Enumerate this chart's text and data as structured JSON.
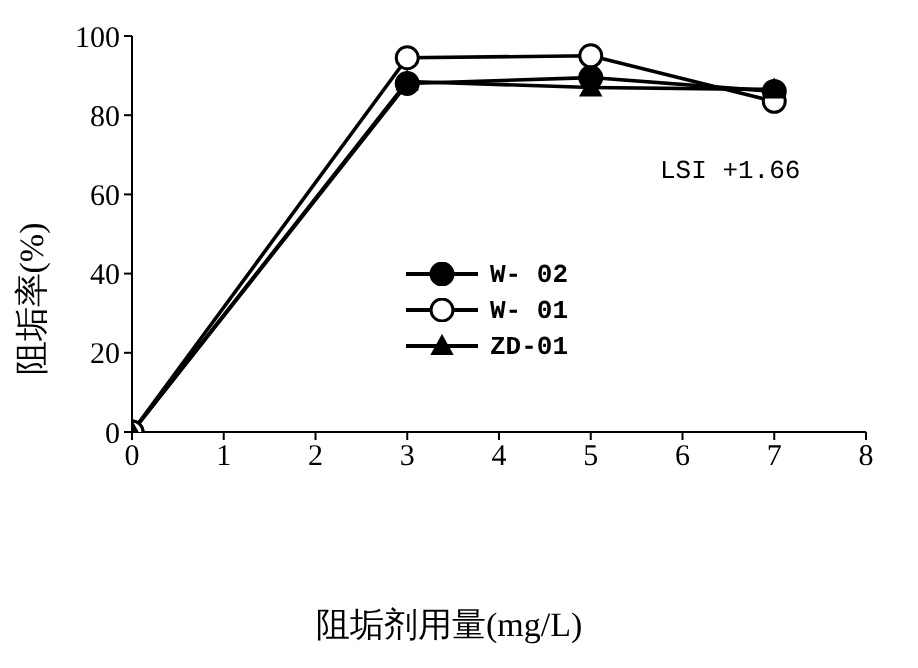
{
  "chart_data": {
    "type": "line",
    "xlabel": "阻垢剂用量(mg/L)",
    "ylabel": "阻垢率(%)",
    "x": [
      0,
      3,
      5,
      7
    ],
    "series": [
      {
        "name": "W- 02",
        "color": "#000000",
        "marker": "circle",
        "values": [
          0,
          88,
          89.5,
          86
        ]
      },
      {
        "name": "W- 01",
        "color": "#000000",
        "marker": "circle-open",
        "values": [
          0,
          94.5,
          95,
          83.5
        ]
      },
      {
        "name": "ZD-01",
        "color": "#000000",
        "marker": "triangle",
        "values": [
          0,
          88.5,
          87,
          86.5
        ]
      }
    ],
    "xlim": [
      0,
      8
    ],
    "xticks": [
      0,
      1,
      2,
      3,
      4,
      5,
      6,
      7,
      8
    ],
    "ylim": [
      0,
      100
    ],
    "yticks": [
      0,
      20,
      40,
      60,
      80,
      100
    ],
    "annotations": [
      "LSI +1.66"
    ],
    "legend": "left",
    "grid": false
  }
}
